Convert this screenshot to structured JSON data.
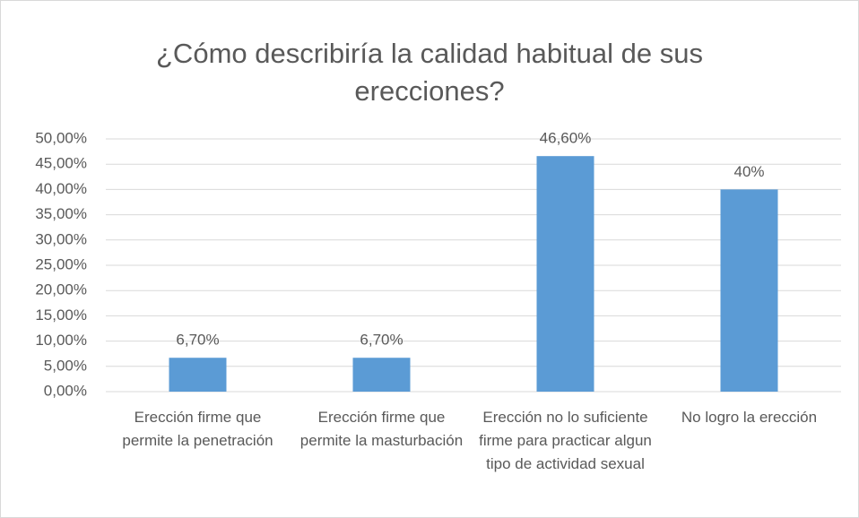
{
  "chart_data": {
    "type": "bar",
    "title": "¿Cómo describiría la calidad habitual de sus erecciones?",
    "categories": [
      "Erección firme  que permite la penetración",
      "Erección firme que permite  la masturbación",
      "Erección  no lo suficiente firme para practicar algun tipo de  actividad sexual",
      "No logro la erección"
    ],
    "values": [
      6.7,
      6.7,
      46.6,
      40
    ],
    "value_labels": [
      "6,70%",
      "6,70%",
      "46,60%",
      "40%"
    ],
    "color": "#5b9bd5",
    "ylim": [
      0,
      50
    ],
    "yticks": [
      {
        "value": 0,
        "label": "0,00%"
      },
      {
        "value": 5,
        "label": "5,00%"
      },
      {
        "value": 10,
        "label": "10,00%"
      },
      {
        "value": 15,
        "label": "15,00%"
      },
      {
        "value": 20,
        "label": "20,00%"
      },
      {
        "value": 25,
        "label": "25,00%"
      },
      {
        "value": 30,
        "label": "30,00%"
      },
      {
        "value": 35,
        "label": "35,00%"
      },
      {
        "value": 40,
        "label": "40,00%"
      },
      {
        "value": 45,
        "label": "45,00%"
      },
      {
        "value": 50,
        "label": "50,00%"
      }
    ],
    "grid": true
  }
}
